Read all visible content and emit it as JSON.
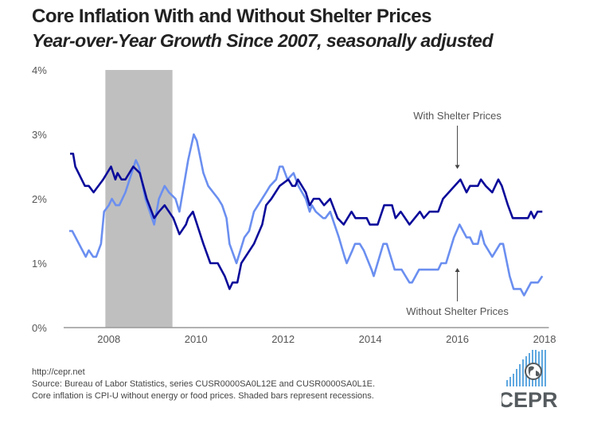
{
  "chart_data": {
    "type": "line",
    "title": "Core Inflation With and Without Shelter Prices",
    "subtitle": "Year-over-Year Growth Since 2007, seasonally adjusted",
    "xlabel": "",
    "ylabel": "",
    "xlim": [
      2007.0,
      2018.1
    ],
    "ylim": [
      0,
      4
    ],
    "x_ticks": [
      2008,
      2010,
      2012,
      2014,
      2016,
      2018
    ],
    "x_tick_labels": [
      "2008",
      "2010",
      "2012",
      "2014",
      "2016",
      "2018"
    ],
    "y_ticks": [
      0,
      1,
      2,
      3,
      4
    ],
    "y_tick_labels": [
      "0%",
      "1%",
      "2%",
      "3%",
      "4%"
    ],
    "grid": false,
    "recessions": [
      [
        2007.92,
        2009.46
      ]
    ],
    "recession_color": "#bfbfbf",
    "series": [
      {
        "name": "With Shelter Prices",
        "color": "#0a0a9a",
        "points": [
          [
            2007.11,
            2.7
          ],
          [
            2007.18,
            2.7
          ],
          [
            2007.23,
            2.5
          ],
          [
            2007.45,
            2.2
          ],
          [
            2007.54,
            2.2
          ],
          [
            2007.65,
            2.1
          ],
          [
            2007.87,
            2.3
          ],
          [
            2008.05,
            2.5
          ],
          [
            2008.15,
            2.3
          ],
          [
            2008.2,
            2.4
          ],
          [
            2008.29,
            2.3
          ],
          [
            2008.38,
            2.3
          ],
          [
            2008.56,
            2.5
          ],
          [
            2008.71,
            2.4
          ],
          [
            2008.87,
            2.0
          ],
          [
            2009.04,
            1.7
          ],
          [
            2009.15,
            1.8
          ],
          [
            2009.28,
            1.9
          ],
          [
            2009.48,
            1.7
          ],
          [
            2009.62,
            1.45
          ],
          [
            2009.77,
            1.6
          ],
          [
            2009.82,
            1.7
          ],
          [
            2009.93,
            1.8
          ],
          [
            2010.17,
            1.3
          ],
          [
            2010.33,
            1.0
          ],
          [
            2010.5,
            1.0
          ],
          [
            2010.66,
            0.8
          ],
          [
            2010.77,
            0.6
          ],
          [
            2010.84,
            0.7
          ],
          [
            2010.95,
            0.7
          ],
          [
            2011.04,
            1.0
          ],
          [
            2011.33,
            1.3
          ],
          [
            2011.52,
            1.6
          ],
          [
            2011.61,
            1.9
          ],
          [
            2011.73,
            2.0
          ],
          [
            2011.92,
            2.2
          ],
          [
            2012.12,
            2.3
          ],
          [
            2012.21,
            2.2
          ],
          [
            2012.28,
            2.2
          ],
          [
            2012.34,
            2.3
          ],
          [
            2012.52,
            2.1
          ],
          [
            2012.61,
            1.9
          ],
          [
            2012.7,
            2.0
          ],
          [
            2012.83,
            2.0
          ],
          [
            2012.94,
            1.9
          ],
          [
            2013.08,
            2.0
          ],
          [
            2013.25,
            1.7
          ],
          [
            2013.39,
            1.6
          ],
          [
            2013.57,
            1.8
          ],
          [
            2013.66,
            1.7
          ],
          [
            2013.92,
            1.7
          ],
          [
            2013.99,
            1.6
          ],
          [
            2014.17,
            1.6
          ],
          [
            2014.32,
            1.9
          ],
          [
            2014.5,
            1.9
          ],
          [
            2014.58,
            1.7
          ],
          [
            2014.7,
            1.8
          ],
          [
            2014.9,
            1.6
          ],
          [
            2015.14,
            1.8
          ],
          [
            2015.23,
            1.7
          ],
          [
            2015.36,
            1.8
          ],
          [
            2015.56,
            1.8
          ],
          [
            2015.67,
            2.0
          ],
          [
            2016.07,
            2.3
          ],
          [
            2016.21,
            2.1
          ],
          [
            2016.29,
            2.2
          ],
          [
            2016.47,
            2.2
          ],
          [
            2016.54,
            2.3
          ],
          [
            2016.65,
            2.2
          ],
          [
            2016.8,
            2.1
          ],
          [
            2016.94,
            2.3
          ],
          [
            2017.02,
            2.2
          ],
          [
            2017.16,
            1.9
          ],
          [
            2017.27,
            1.7
          ],
          [
            2017.62,
            1.7
          ],
          [
            2017.69,
            1.8
          ],
          [
            2017.76,
            1.7
          ],
          [
            2017.84,
            1.8
          ],
          [
            2017.95,
            1.8
          ]
        ]
      },
      {
        "name": "Without Shelter Prices",
        "color": "#6b8ff0",
        "points": [
          [
            2007.09,
            1.5
          ],
          [
            2007.16,
            1.5
          ],
          [
            2007.47,
            1.1
          ],
          [
            2007.54,
            1.2
          ],
          [
            2007.64,
            1.1
          ],
          [
            2007.71,
            1.1
          ],
          [
            2007.82,
            1.3
          ],
          [
            2007.89,
            1.8
          ],
          [
            2008.0,
            1.9
          ],
          [
            2008.07,
            2.0
          ],
          [
            2008.16,
            1.9
          ],
          [
            2008.24,
            1.9
          ],
          [
            2008.38,
            2.1
          ],
          [
            2008.62,
            2.6
          ],
          [
            2008.69,
            2.5
          ],
          [
            2008.84,
            2.0
          ],
          [
            2009.04,
            1.6
          ],
          [
            2009.15,
            2.0
          ],
          [
            2009.28,
            2.2
          ],
          [
            2009.38,
            2.1
          ],
          [
            2009.53,
            2.0
          ],
          [
            2009.62,
            1.8
          ],
          [
            2009.82,
            2.6
          ],
          [
            2009.95,
            3.0
          ],
          [
            2010.02,
            2.9
          ],
          [
            2010.17,
            2.4
          ],
          [
            2010.28,
            2.2
          ],
          [
            2010.51,
            2.0
          ],
          [
            2010.6,
            1.9
          ],
          [
            2010.7,
            1.7
          ],
          [
            2010.77,
            1.3
          ],
          [
            2010.93,
            1.0
          ],
          [
            2011.02,
            1.2
          ],
          [
            2011.11,
            1.4
          ],
          [
            2011.22,
            1.5
          ],
          [
            2011.33,
            1.8
          ],
          [
            2011.61,
            2.1
          ],
          [
            2011.7,
            2.2
          ],
          [
            2011.84,
            2.3
          ],
          [
            2011.92,
            2.5
          ],
          [
            2011.99,
            2.5
          ],
          [
            2012.1,
            2.3
          ],
          [
            2012.24,
            2.4
          ],
          [
            2012.35,
            2.2
          ],
          [
            2012.52,
            2.0
          ],
          [
            2012.61,
            1.8
          ],
          [
            2012.66,
            1.9
          ],
          [
            2012.75,
            1.8
          ],
          [
            2012.92,
            1.7
          ],
          [
            2012.97,
            1.7
          ],
          [
            2013.08,
            1.8
          ],
          [
            2013.28,
            1.4
          ],
          [
            2013.41,
            1.1
          ],
          [
            2013.46,
            1.0
          ],
          [
            2013.59,
            1.2
          ],
          [
            2013.65,
            1.3
          ],
          [
            2013.76,
            1.3
          ],
          [
            2013.85,
            1.2
          ],
          [
            2014.03,
            0.9
          ],
          [
            2014.08,
            0.8
          ],
          [
            2014.3,
            1.3
          ],
          [
            2014.38,
            1.3
          ],
          [
            2014.56,
            0.9
          ],
          [
            2014.72,
            0.9
          ],
          [
            2014.9,
            0.7
          ],
          [
            2014.96,
            0.7
          ],
          [
            2015.12,
            0.9
          ],
          [
            2015.56,
            0.9
          ],
          [
            2015.63,
            1.0
          ],
          [
            2015.74,
            1.0
          ],
          [
            2015.92,
            1.4
          ],
          [
            2016.05,
            1.6
          ],
          [
            2016.21,
            1.4
          ],
          [
            2016.29,
            1.4
          ],
          [
            2016.36,
            1.3
          ],
          [
            2016.47,
            1.3
          ],
          [
            2016.54,
            1.5
          ],
          [
            2016.62,
            1.3
          ],
          [
            2016.8,
            1.1
          ],
          [
            2016.98,
            1.3
          ],
          [
            2017.05,
            1.3
          ],
          [
            2017.2,
            0.8
          ],
          [
            2017.29,
            0.6
          ],
          [
            2017.45,
            0.6
          ],
          [
            2017.53,
            0.5
          ],
          [
            2017.69,
            0.7
          ],
          [
            2017.85,
            0.7
          ],
          [
            2017.95,
            0.8
          ]
        ]
      }
    ],
    "annotations": [
      {
        "text": "With Shelter Prices",
        "arrow_to": [
          2016.0,
          2.45
        ]
      },
      {
        "text": "Without Shelter Prices",
        "arrow_to": [
          2016.0,
          0.95
        ]
      }
    ]
  },
  "footer": {
    "url": "http://cepr.net",
    "source": "Source: Bureau of Labor Statistics, series CUSR0000SA0L12E and CUSR0000SA0L1E.",
    "note": "Core inflation is CPI-U without energy or food prices. Shaded bars represent recessions."
  },
  "logo": {
    "text": "CEPR",
    "bar_color": "#5fa8e0",
    "text_color": "#555b5e"
  }
}
